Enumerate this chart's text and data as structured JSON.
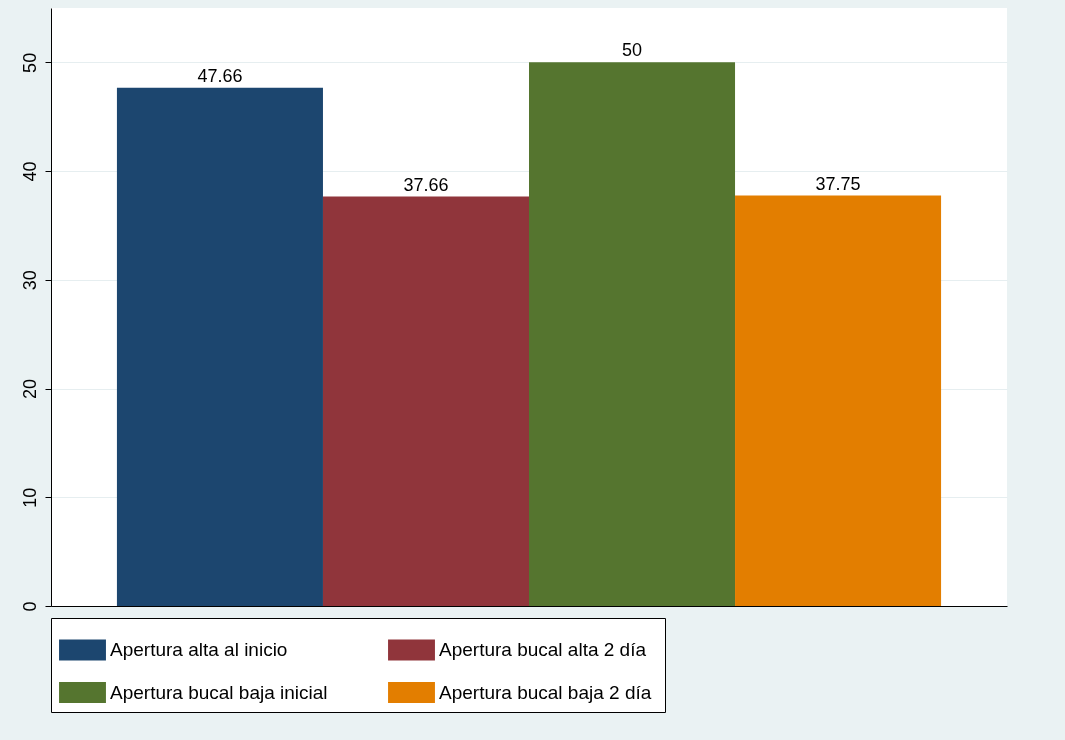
{
  "chart_data": {
    "type": "bar",
    "categories": [
      null
    ],
    "series": [
      {
        "name": "Apertura alta al inicio",
        "color": "#1c466f",
        "values": [
          47.66
        ]
      },
      {
        "name": "Apertura bucal alta  2 día",
        "color": "#90353b",
        "values": [
          37.66
        ]
      },
      {
        "name": "Apertura bucal baja inicial",
        "color": "#55752f",
        "values": [
          50
        ]
      },
      {
        "name": "Apertura bucal  baja 2 día",
        "color": "#e37e00",
        "values": [
          37.75
        ]
      }
    ],
    "ylim": [
      0,
      55
    ],
    "yticks": [
      0,
      10,
      20,
      30,
      40,
      50
    ],
    "grid": "y",
    "legend": "bottom",
    "data_labels": true,
    "tick_labels": "y"
  }
}
